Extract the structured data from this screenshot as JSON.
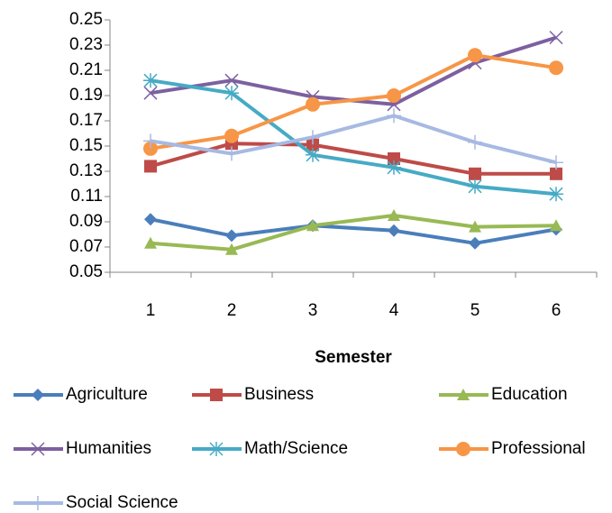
{
  "chart_data": {
    "type": "line",
    "x_label": "Semester",
    "categories": [
      "1",
      "2",
      "3",
      "4",
      "5",
      "6"
    ],
    "ylim": [
      0.05,
      0.25
    ],
    "yticks": [
      0.05,
      0.07,
      0.09,
      0.11,
      0.13,
      0.15,
      0.17,
      0.19,
      0.21,
      0.23,
      0.25
    ],
    "legend": "bottom",
    "series": [
      {
        "name": "Agriculture",
        "color": "#4a7ebb",
        "marker": "diamond",
        "values": [
          0.092,
          0.079,
          0.087,
          0.083,
          0.073,
          0.084
        ]
      },
      {
        "name": "Business",
        "color": "#be4b48",
        "marker": "square",
        "values": [
          0.134,
          0.152,
          0.151,
          0.14,
          0.128,
          0.128
        ]
      },
      {
        "name": "Education",
        "color": "#98b954",
        "marker": "triangle",
        "values": [
          0.073,
          0.068,
          0.087,
          0.095,
          0.086,
          0.087
        ]
      },
      {
        "name": "Humanities",
        "color": "#7d60a0",
        "marker": "x",
        "values": [
          0.192,
          0.202,
          0.189,
          0.183,
          0.216,
          0.236
        ]
      },
      {
        "name": "Math/Science",
        "color": "#46aac5",
        "marker": "star",
        "values": [
          0.202,
          0.192,
          0.143,
          0.133,
          0.118,
          0.112
        ]
      },
      {
        "name": "Professional",
        "color": "#f79646",
        "marker": "circle",
        "values": [
          0.148,
          0.158,
          0.183,
          0.19,
          0.222,
          0.212
        ]
      },
      {
        "name": "Social Science",
        "color": "#a7b9e3",
        "marker": "plus",
        "values": [
          0.154,
          0.144,
          0.157,
          0.174,
          0.153,
          0.137
        ]
      }
    ]
  }
}
